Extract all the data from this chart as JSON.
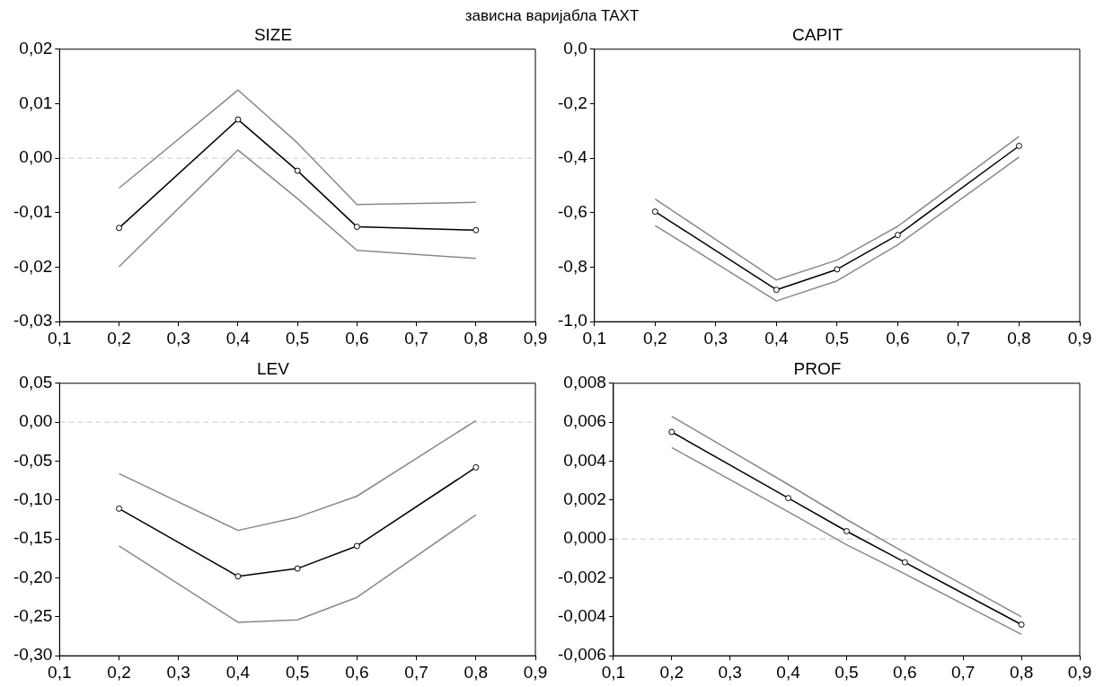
{
  "chart_data": [
    {
      "type": "line",
      "title": "зависна варијабла TAXT",
      "subtitle": "SIZE",
      "x": [
        0.2,
        0.4,
        0.5,
        0.6,
        0.8
      ],
      "xlim": [
        0.1,
        0.9
      ],
      "xticks": [
        {
          "value": 0.1,
          "label": "0,1"
        },
        {
          "value": 0.2,
          "label": "0,2"
        },
        {
          "value": 0.3,
          "label": "0,3"
        },
        {
          "value": 0.4,
          "label": "0,4"
        },
        {
          "value": 0.5,
          "label": "0,5"
        },
        {
          "value": 0.6,
          "label": "0,6"
        },
        {
          "value": 0.7,
          "label": "0,7"
        },
        {
          "value": 0.8,
          "label": "0,8"
        },
        {
          "value": 0.9,
          "label": "0,9"
        }
      ],
      "ylim": [
        -0.03,
        0.02
      ],
      "yticks": [
        {
          "value": -0.03,
          "label": "-0,03"
        },
        {
          "value": -0.02,
          "label": "-0,02"
        },
        {
          "value": -0.01,
          "label": "-0,01"
        },
        {
          "value": 0,
          "label": "0,00"
        },
        {
          "value": 0.01,
          "label": "0,01"
        },
        {
          "value": 0.02,
          "label": "0,02"
        }
      ],
      "grid": false,
      "legend": false,
      "marker": "circle",
      "line_style": "solid",
      "series": [
        {
          "color": "#888888",
          "marker": "none",
          "values": [
            -0.0055,
            0.0125,
            0.0028,
            -0.0085,
            -0.0081
          ]
        },
        {
          "color": "#888888",
          "marker": "none",
          "values": [
            -0.0199,
            0.0015,
            -0.0074,
            -0.0169,
            -0.0184
          ]
        },
        {
          "color": "#000000",
          "values": [
            -0.0128,
            0.0071,
            -0.0023,
            -0.0126,
            -0.0132
          ]
        }
      ],
      "ref_lines": [
        {
          "axis": "y",
          "value": 0,
          "color": "#c8c8c8",
          "line_style": "dashed"
        }
      ]
    },
    {
      "type": "line",
      "title": "CAPIT",
      "x": [
        0.2,
        0.4,
        0.5,
        0.6,
        0.8
      ],
      "xlim": [
        0.1,
        0.9
      ],
      "xticks": [
        {
          "value": 0.1,
          "label": "0,1"
        },
        {
          "value": 0.2,
          "label": "0,2"
        },
        {
          "value": 0.3,
          "label": "0,3"
        },
        {
          "value": 0.4,
          "label": "0,4"
        },
        {
          "value": 0.5,
          "label": "0,5"
        },
        {
          "value": 0.6,
          "label": "0,6"
        },
        {
          "value": 0.7,
          "label": "0,7"
        },
        {
          "value": 0.8,
          "label": "0,8"
        },
        {
          "value": 0.9,
          "label": "0,9"
        }
      ],
      "ylim": [
        -1.0,
        0.0
      ],
      "yticks": [
        {
          "value": -1.0,
          "label": "-1,0"
        },
        {
          "value": -0.8,
          "label": "-0,8"
        },
        {
          "value": -0.6,
          "label": "-0,6"
        },
        {
          "value": -0.4,
          "label": "-0,4"
        },
        {
          "value": -0.2,
          "label": "-0,2"
        },
        {
          "value": 0,
          "label": "0,0"
        }
      ],
      "grid": false,
      "legend": false,
      "marker": "circle",
      "line_style": "solid",
      "series": [
        {
          "color": "#888888",
          "marker": "none",
          "values": [
            -0.55,
            -0.847,
            -0.774,
            -0.65,
            -0.32
          ]
        },
        {
          "color": "#888888",
          "marker": "none",
          "values": [
            -0.647,
            -0.924,
            -0.85,
            -0.718,
            -0.396
          ]
        },
        {
          "color": "#000000",
          "values": [
            -0.596,
            -0.883,
            -0.808,
            -0.682,
            -0.355
          ]
        }
      ]
    },
    {
      "type": "line",
      "title": "LEV",
      "x": [
        0.2,
        0.4,
        0.5,
        0.6,
        0.8
      ],
      "xlim": [
        0.1,
        0.9
      ],
      "xticks": [
        {
          "value": 0.1,
          "label": "0,1"
        },
        {
          "value": 0.2,
          "label": "0,2"
        },
        {
          "value": 0.3,
          "label": "0,3"
        },
        {
          "value": 0.4,
          "label": "0,4"
        },
        {
          "value": 0.5,
          "label": "0,5"
        },
        {
          "value": 0.6,
          "label": "0,6"
        },
        {
          "value": 0.7,
          "label": "0,7"
        },
        {
          "value": 0.8,
          "label": "0,8"
        },
        {
          "value": 0.9,
          "label": "0,9"
        }
      ],
      "ylim": [
        -0.3,
        0.05
      ],
      "yticks": [
        {
          "value": -0.3,
          "label": "-0,30"
        },
        {
          "value": -0.25,
          "label": "-0,25"
        },
        {
          "value": -0.2,
          "label": "-0,20"
        },
        {
          "value": -0.15,
          "label": "-0,15"
        },
        {
          "value": -0.1,
          "label": "-0,10"
        },
        {
          "value": -0.05,
          "label": "-0,05"
        },
        {
          "value": 0,
          "label": "0,00"
        },
        {
          "value": 0.05,
          "label": "0,05"
        }
      ],
      "grid": false,
      "legend": false,
      "marker": "circle",
      "line_style": "solid",
      "series": [
        {
          "color": "#888888",
          "marker": "none",
          "values": [
            -0.066,
            -0.139,
            -0.122,
            -0.095,
            0.002
          ]
        },
        {
          "color": "#888888",
          "marker": "none",
          "values": [
            -0.159,
            -0.257,
            -0.254,
            -0.225,
            -0.119
          ]
        },
        {
          "color": "#000000",
          "values": [
            -0.111,
            -0.198,
            -0.188,
            -0.159,
            -0.058
          ]
        }
      ],
      "ref_lines": [
        {
          "axis": "y",
          "value": 0,
          "color": "#c8c8c8",
          "line_style": "dashed"
        }
      ]
    },
    {
      "type": "line",
      "title": "PROF",
      "x": [
        0.2,
        0.4,
        0.5,
        0.6,
        0.8
      ],
      "xlim": [
        0.1,
        0.9
      ],
      "xticks": [
        {
          "value": 0.1,
          "label": "0,1"
        },
        {
          "value": 0.2,
          "label": "0,2"
        },
        {
          "value": 0.3,
          "label": "0,3"
        },
        {
          "value": 0.4,
          "label": "0,4"
        },
        {
          "value": 0.5,
          "label": "0,5"
        },
        {
          "value": 0.6,
          "label": "0,6"
        },
        {
          "value": 0.7,
          "label": "0,7"
        },
        {
          "value": 0.8,
          "label": "0,8"
        },
        {
          "value": 0.9,
          "label": "0,9"
        }
      ],
      "ylim": [
        -0.006,
        0.008
      ],
      "yticks": [
        {
          "value": -0.006,
          "label": "-0,006"
        },
        {
          "value": -0.004,
          "label": "-0,004"
        },
        {
          "value": -0.002,
          "label": "-0,002"
        },
        {
          "value": 0,
          "label": "0,000"
        },
        {
          "value": 0.002,
          "label": "0,002"
        },
        {
          "value": 0.004,
          "label": "0,004"
        },
        {
          "value": 0.006,
          "label": "0,006"
        },
        {
          "value": 0.008,
          "label": "0,008"
        }
      ],
      "grid": false,
      "legend": false,
      "marker": "circle",
      "line_style": "solid",
      "series": [
        {
          "color": "#888888",
          "marker": "none",
          "values": [
            0.0063,
            0.0028,
            0.001,
            -0.0007,
            -0.004
          ]
        },
        {
          "color": "#888888",
          "marker": "none",
          "values": [
            0.0047,
            0.0014,
            -0.0003,
            -0.0018,
            -0.0049
          ]
        },
        {
          "color": "#000000",
          "values": [
            0.0055,
            0.0021,
            0.0004,
            -0.0012,
            -0.0044
          ]
        }
      ],
      "ref_lines": [
        {
          "axis": "y",
          "value": 0,
          "color": "#c8c8c8",
          "line_style": "dashed"
        }
      ]
    }
  ]
}
